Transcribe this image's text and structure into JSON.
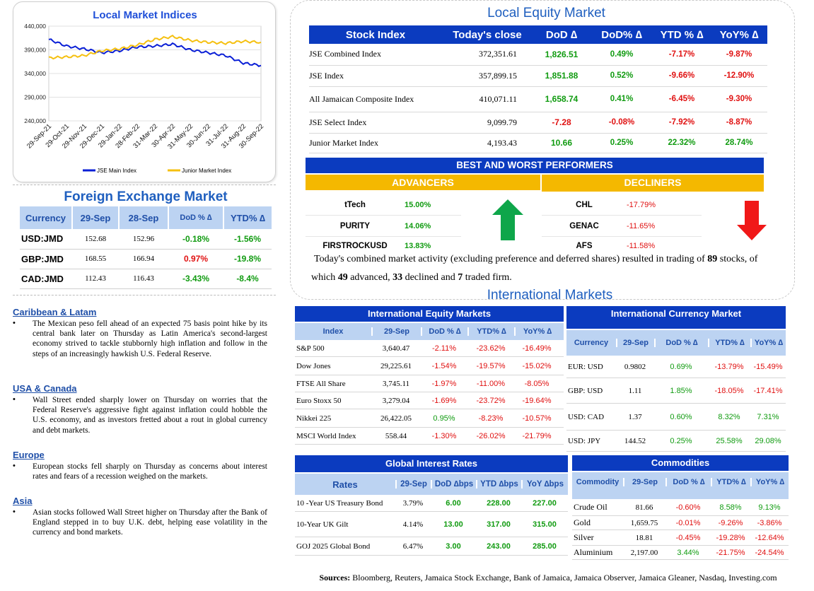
{
  "chart": {
    "title": "Local Market Indices",
    "yticks": [
      "440,000",
      "390,000",
      "340,000",
      "290,000",
      "240,000"
    ],
    "xticks": [
      "29-Sep-21",
      "29-Oct-21",
      "29-Nov-21",
      "29-Dec-21",
      "29-Jan-22",
      "28-Feb-22",
      "31-Mar-22",
      "30-Apr-22",
      "31-May-22",
      "30-Jun-22",
      "31-Jul-22",
      "31-Aug-22",
      "30-Sep-22"
    ],
    "legend": [
      "JSE Main Index",
      "Junior Market Index"
    ],
    "colors": {
      "main": "#0a1fd6",
      "junior": "#f5c010"
    }
  },
  "chart_data": {
    "type": "line",
    "title": "Local Market Indices",
    "x": [
      "29-Sep-21",
      "29-Oct-21",
      "29-Nov-21",
      "29-Dec-21",
      "29-Jan-22",
      "28-Feb-22",
      "31-Mar-22",
      "30-Apr-22",
      "31-May-22",
      "30-Jun-22",
      "31-Jul-22",
      "31-Aug-22",
      "30-Sep-22"
    ],
    "ylim": [
      240000,
      440000
    ],
    "series": [
      {
        "name": "JSE Main Index",
        "values": [
          412000,
          398000,
          392000,
          384000,
          388000,
          396000,
          398000,
          402000,
          390000,
          384000,
          378000,
          362000,
          357000
        ]
      },
      {
        "name": "Junior Market Index",
        "values": [
          373000,
          375000,
          378000,
          388000,
          392000,
          400000,
          412000,
          418000,
          410000,
          406000,
          404000,
          408000,
          406000
        ]
      }
    ],
    "legend": "bottom",
    "grid": true
  },
  "fx": {
    "title": "Foreign Exchange Market",
    "headers": [
      "Currency",
      "29-Sep",
      "28-Sep",
      "DoD % ∆",
      "YTD% ∆"
    ],
    "rows": [
      [
        "USD:JMD",
        "152.68",
        "152.96",
        "-0.18%",
        "-1.56%"
      ],
      [
        "GBP:JMD",
        "168.55",
        "166.94",
        "0.97%",
        "-19.8%"
      ],
      [
        "CAD:JMD",
        "112.43",
        "116.43",
        "-3.43%",
        "-8.4%"
      ]
    ]
  },
  "news": [
    {
      "title": "Caribbean & Latam",
      "text": "The Mexican peso fell ahead of an expected 75 basis point hike by its central bank later on Thursday as Latin America's second-largest economy strived to tackle stubbornly high inflation and follow in the steps of an increasingly hawkish U.S. Federal Reserve."
    },
    {
      "title": "USA & Canada",
      "text": "Wall Street ended sharply lower on Thursday on worries that the Federal Reserve's aggressive fight against inflation could hobble the U.S. economy, and as investors fretted about a rout in global currency and debt markets."
    },
    {
      "title": "Europe",
      "text": "European stocks fell sharply on Thursday as concerns about interest rates and fears of a recession weighed on the markets."
    },
    {
      "title": "Asia",
      "text": "Asian stocks followed Wall Street higher on Thursday after the Bank of England stepped in to buy U.K. debt, helping ease volatility in the currency and bond markets."
    }
  ],
  "equity": {
    "title": "Local Equity Market",
    "headers": [
      "Stock Index",
      "Today's close",
      "DoD ∆",
      "DoD% ∆",
      "YTD % ∆",
      "YoY% ∆"
    ],
    "rows": [
      [
        "JSE Combined Index",
        "372,351.61",
        "1,826.51",
        "0.49%",
        "-7.17%",
        "-9.87%"
      ],
      [
        "JSE Index",
        "357,899.15",
        "1,851.88",
        "0.52%",
        "-9.66%",
        "-12.90%"
      ],
      [
        "All Jamaican Composite Index",
        "410,071.11",
        "1,658.74",
        "0.41%",
        "-6.45%",
        "-9.30%"
      ],
      [
        "JSE Select Index",
        "9,099.79",
        "-7.28",
        "-0.08%",
        "-7.92%",
        "-8.87%"
      ],
      [
        "Junior Market Index",
        "4,193.43",
        "10.66",
        "0.25%",
        "22.32%",
        "28.74%"
      ]
    ]
  },
  "performers": {
    "title": "BEST AND WORST PERFORMERS",
    "advancers_label": "ADVANCERS",
    "decliners_label": "DECLINERS",
    "advancers": [
      [
        "tTech",
        "15.00%"
      ],
      [
        "PURITY",
        "14.06%"
      ],
      [
        "FIRSTROCKUSD",
        "13.83%"
      ]
    ],
    "decliners": [
      [
        "CHL",
        "-17.79%"
      ],
      [
        "GENAC",
        "-11.65%"
      ],
      [
        "AFS",
        "-11.58%"
      ]
    ]
  },
  "summary": {
    "before": "Today's combined market activity (excluding preference and deferred shares) resulted in trading of ",
    "traded": "89",
    "mid1": " stocks, of which ",
    "advanced": "49",
    "mid2": " advanced, ",
    "declined": "33",
    "mid3": " declined and ",
    "firm": "7",
    "end": " traded firm."
  },
  "intl": {
    "title": "International Markets",
    "equity": {
      "title": "International Equity Markets",
      "headers": [
        "Index",
        "29-Sep",
        "DoD % ∆",
        "YTD% ∆",
        "YoY% ∆"
      ],
      "rows": [
        [
          "S&P 500",
          "3,640.47",
          "-2.11%",
          "-23.62%",
          "-16.49%"
        ],
        [
          "Dow Jones",
          "29,225.61",
          "-1.54%",
          "-19.57%",
          "-15.02%"
        ],
        [
          "FTSE All Share",
          "3,745.11",
          "-1.97%",
          "-11.00%",
          "-8.05%"
        ],
        [
          "Euro Stoxx 50",
          "3,279.04",
          "-1.69%",
          "-23.72%",
          "-19.64%"
        ],
        [
          "Nikkei 225",
          "26,422.05",
          "0.95%",
          "-8.23%",
          "-10.57%"
        ],
        [
          "MSCI World Index",
          "558.44",
          "-1.30%",
          "-26.02%",
          "-21.79%"
        ]
      ]
    },
    "currency": {
      "title": "International Currency Market",
      "headers": [
        "Currency",
        "29-Sep",
        "DoD % ∆",
        "YTD% ∆",
        "YoY% ∆"
      ],
      "rows": [
        [
          "EUR: USD",
          "0.9802",
          "0.69%",
          "-13.79%",
          "-15.49%"
        ],
        [
          "GBP: USD",
          "1.11",
          "1.85%",
          "-18.05%",
          "-17.41%"
        ],
        [
          "USD: CAD",
          "1.37",
          "0.60%",
          "8.32%",
          "7.31%"
        ],
        [
          "USD: JPY",
          "144.52",
          "0.25%",
          "25.58%",
          "29.08%"
        ]
      ]
    },
    "rates": {
      "title": "Global Interest Rates",
      "headers": [
        "Rates",
        "29-Sep",
        "DoD ∆bps",
        "YTD ∆bps",
        "YoY ∆bps"
      ],
      "rows": [
        [
          "10 -Year US Treasury Bond",
          "3.79%",
          "6.00",
          "228.00",
          "227.00"
        ],
        [
          "10-Year UK Gilt",
          "4.14%",
          "13.00",
          "317.00",
          "315.00"
        ],
        [
          "GOJ 2025 Global Bond",
          "6.47%",
          "3.00",
          "243.00",
          "285.00"
        ]
      ]
    },
    "commodities": {
      "title": "Commodities",
      "headers": [
        "Commodity",
        "29-Sep",
        "DoD % ∆",
        "YTD% ∆",
        "YoY% ∆"
      ],
      "rows": [
        [
          "Crude Oil",
          "81.66",
          "-0.60%",
          "8.58%",
          "9.13%"
        ],
        [
          "Gold",
          "1,659.75",
          "-0.01%",
          "-9.26%",
          "-3.86%"
        ],
        [
          "Silver",
          "18.81",
          "-0.45%",
          "-19.28%",
          "-12.64%"
        ],
        [
          "Aluminium",
          "2,197.00",
          "3.44%",
          "-21.75%",
          "-24.54%"
        ]
      ]
    }
  },
  "sources": {
    "label": "Sources:",
    "text": " Bloomberg, Reuters, Jamaica Stock Exchange, Bank of Jamaica, Jamaica Observer, Jamaica Gleaner, Nasdaq, Investing.com"
  }
}
